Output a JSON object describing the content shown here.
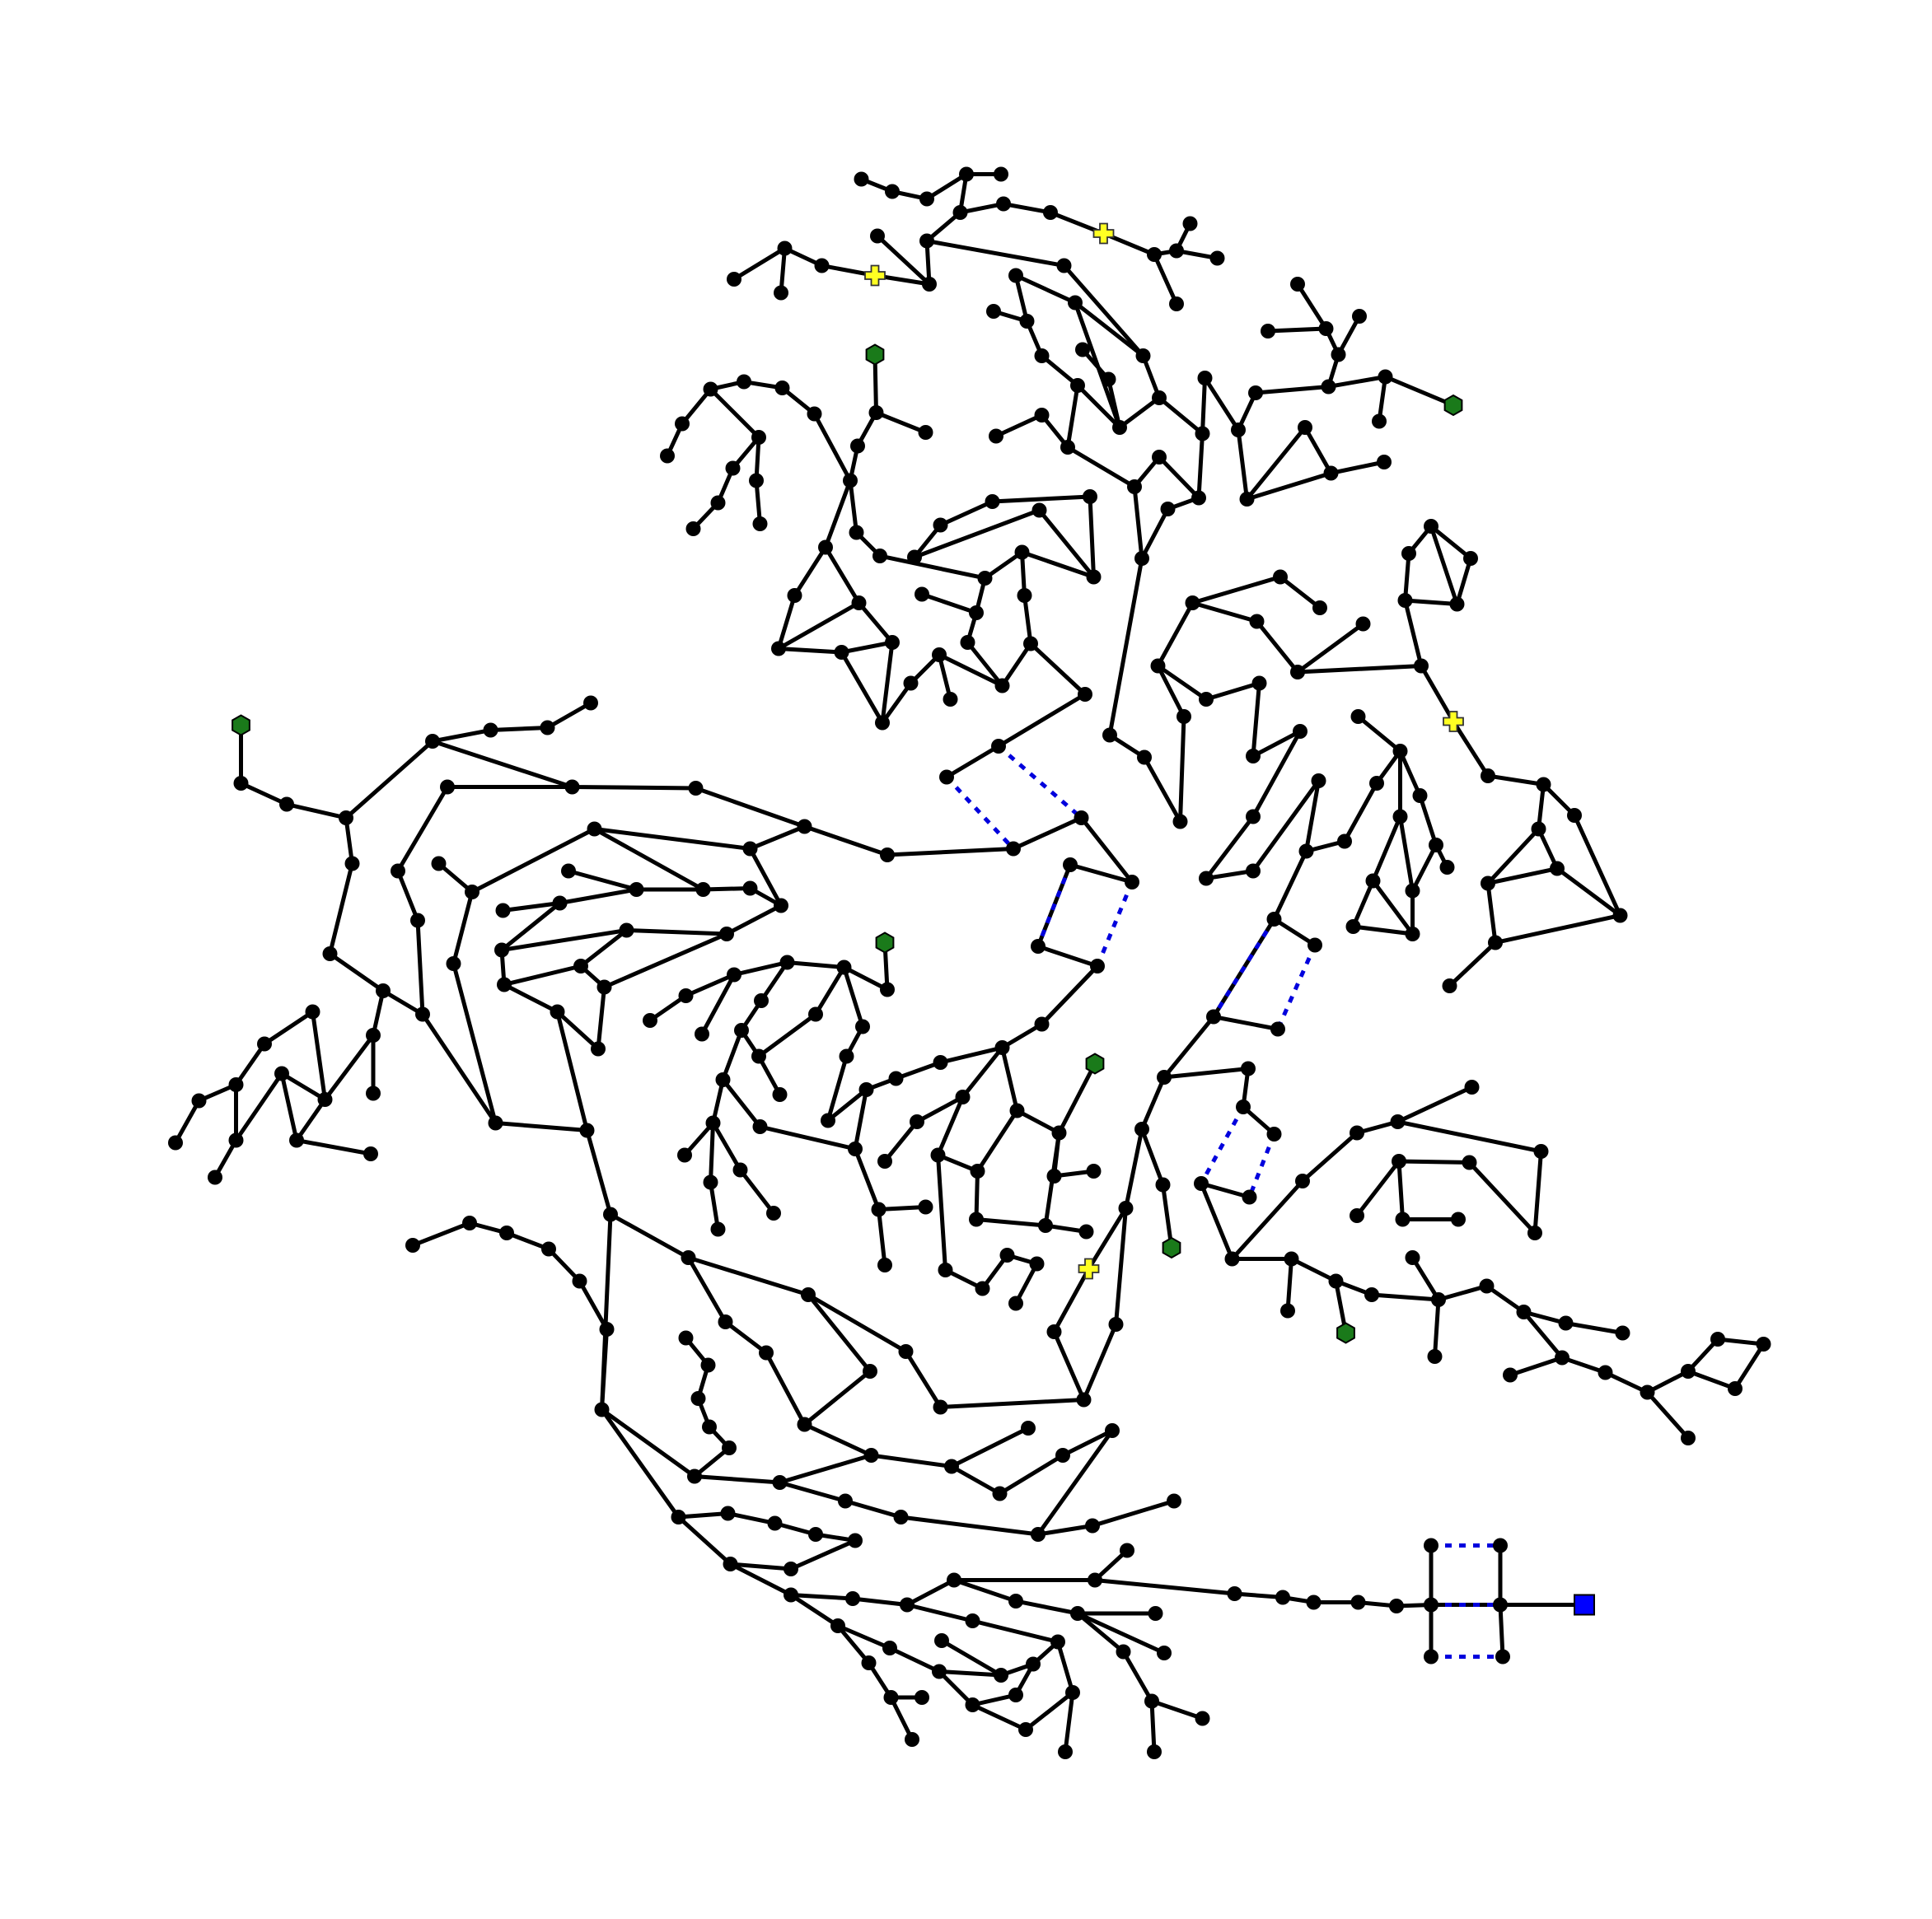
{
  "diagram": {
    "kind": "distribution network graph",
    "colors": {
      "bus": "#000000",
      "line": "#000000",
      "open_switch": "#0000dd",
      "generator": "#1a7a1a",
      "load": "#ffff22",
      "external_grid": "#0000ff"
    },
    "legend_shapes": {
      "generator": "hexagon",
      "load": "cross",
      "external_grid": "square"
    }
  }
}
